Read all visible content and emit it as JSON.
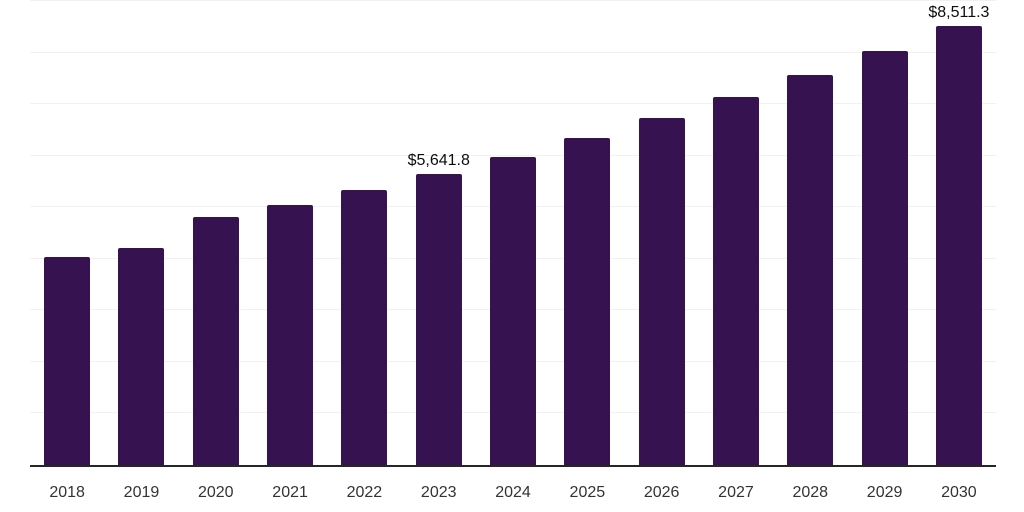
{
  "chart_data": {
    "type": "bar",
    "title": "",
    "xlabel": "",
    "ylabel": "",
    "categories": [
      "2018",
      "2019",
      "2020",
      "2021",
      "2022",
      "2023",
      "2024",
      "2025",
      "2026",
      "2027",
      "2028",
      "2029",
      "2030"
    ],
    "values": [
      4035,
      4210,
      4810,
      5045,
      5335,
      5641.8,
      5983,
      6345,
      6729,
      7136,
      7568,
      8026,
      8511.3
    ],
    "annotations": [
      {
        "index": 5,
        "category": "2023",
        "text": "$5,641.8"
      },
      {
        "index": 12,
        "category": "2030",
        "text": "$8,511.3"
      }
    ],
    "ylim": [
      0,
      9000
    ],
    "gridline_step": 1000,
    "grid_on": true,
    "legend": "none",
    "y_axis_labels_visible": false,
    "colors": {
      "bar": "#371250",
      "axis": "#262626",
      "gridline": "#f1f1f3",
      "tick_label": "#333333",
      "annotation": "#0d0d0d",
      "background": "#ffffff"
    }
  }
}
